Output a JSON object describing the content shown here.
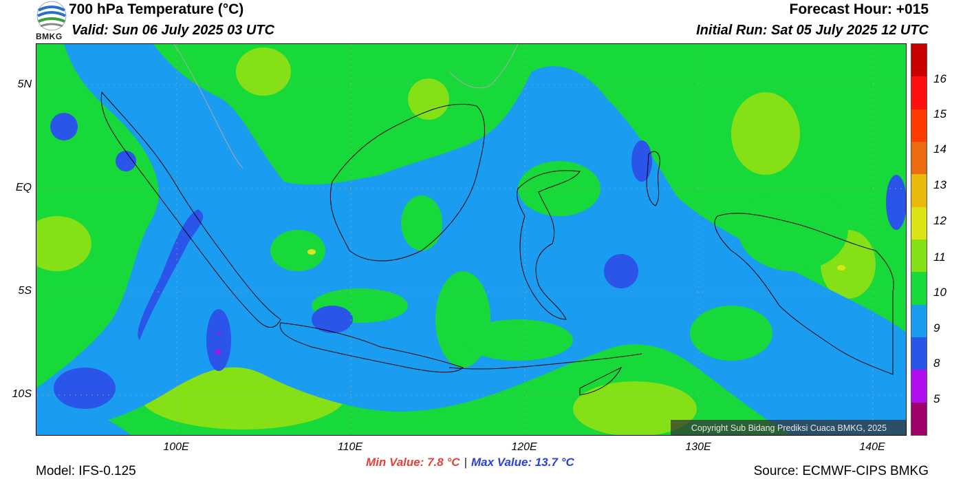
{
  "header": {
    "title": "700 hPa Temperature (°C)",
    "valid": "Valid: Sun 06 July 2025 03 UTC",
    "forecast_hour": "Forecast Hour: +015",
    "initial_run": "Initial Run: Sat 05 July 2025 12 UTC",
    "logo_text": "BMKG"
  },
  "map": {
    "lat_labels": [
      "5N",
      "EQ",
      "5S",
      "10S"
    ],
    "lon_labels": [
      "100E",
      "110E",
      "120E",
      "130E",
      "140E"
    ],
    "copyright": "Copyright Sub Bidang Prediksi Cuaca BMKG, 2025"
  },
  "colorbar": {
    "labels": [
      "16",
      "15",
      "14",
      "13",
      "12",
      "11",
      "10",
      "9",
      "8",
      "5"
    ],
    "colors": [
      "#c80000",
      "#ff0f0f",
      "#ff3c00",
      "#ee6a0e",
      "#e8b80a",
      "#dbe416",
      "#86e016",
      "#18d93a",
      "#1a9cf0",
      "#2a55e8",
      "#b00ef0",
      "#a0006a"
    ]
  },
  "stats": {
    "min": "Min Value: 7.8 °C",
    "separator": "|",
    "max": "Max Value: 13.7 °C"
  },
  "footer": {
    "model": "Model: IFS-0.125",
    "source": "Source: ECMWF-CIPS BMKG"
  }
}
